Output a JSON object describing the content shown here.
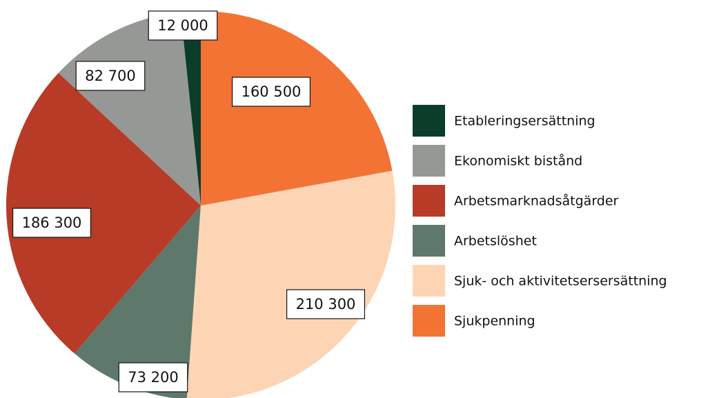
{
  "chart_data": {
    "type": "pie",
    "categories": [
      "Etableringsersättning",
      "Ekonomiskt bistånd",
      "Arbetsmarknadsåtgärder",
      "Arbetslöshet",
      "Sjuk- och aktivitetsersersättning",
      "Sjukpenning"
    ],
    "values": [
      12000,
      82700,
      186300,
      73200,
      210300,
      160500
    ],
    "value_labels": [
      "12 000",
      "82 700",
      "186 300",
      "73 200",
      "210 300",
      "160 500"
    ],
    "colors": [
      "#0a3d2a",
      "#969895",
      "#b73b26",
      "#5e786c",
      "#fdd5b5",
      "#f37335"
    ],
    "legend": "right"
  }
}
